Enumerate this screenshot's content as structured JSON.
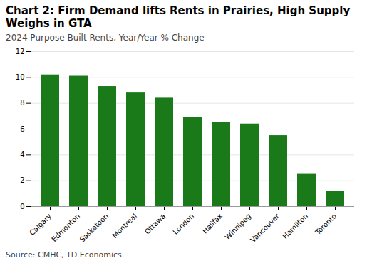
{
  "chart_data": {
    "type": "bar",
    "title": "Chart 2: Firm Demand lifts Rents in Prairies, High Supply Weighs in GTA",
    "subtitle": "2024 Purpose-Built Rents, Year/Year % Change",
    "source": "Source:  CMHC, TD Economics.",
    "categories": [
      "Calgary",
      "Edmonton",
      "Saskatoon",
      "Montreal",
      "Ottawa",
      "London",
      "Halifax",
      "Winnipeg",
      "Vancouver",
      "Hamilton",
      "Toronto"
    ],
    "values": [
      10.2,
      10.1,
      9.3,
      8.8,
      8.4,
      6.9,
      6.5,
      6.4,
      5.5,
      2.5,
      1.2
    ],
    "color": "#1a7a1a",
    "ylim": [
      0,
      12
    ],
    "yticks": [
      0,
      2,
      4,
      6,
      8,
      10,
      12
    ],
    "grid": true
  }
}
